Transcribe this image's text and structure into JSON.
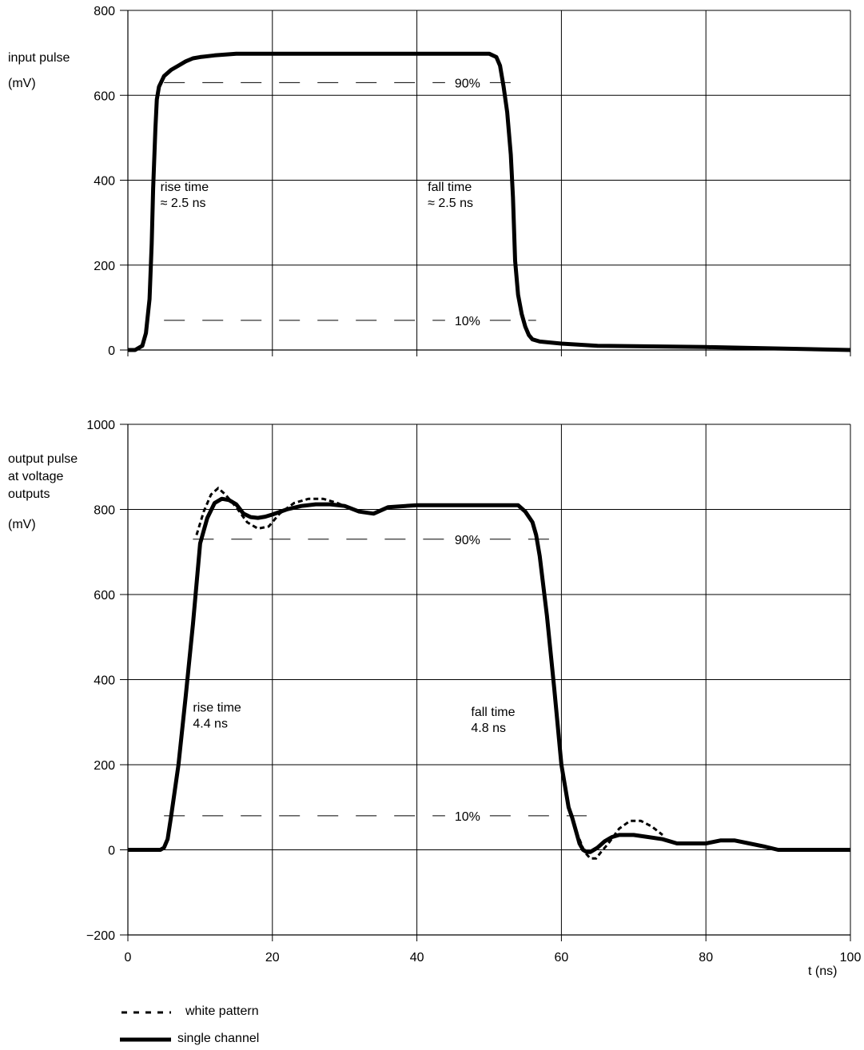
{
  "chart_data": [
    {
      "type": "line",
      "ylabel_lines": [
        "input pulse",
        "(mV)"
      ],
      "xlim": [
        0,
        100
      ],
      "ylim": [
        0,
        800
      ],
      "x_ticks": [
        0,
        20,
        40,
        60,
        80,
        100
      ],
      "y_ticks": [
        0,
        200,
        400,
        600,
        800
      ],
      "y_tick_labels": [
        "0",
        "200",
        "400",
        "600",
        "800"
      ],
      "grid": true,
      "series": [
        {
          "style": "solid",
          "x": [
            0,
            1,
            2,
            2.5,
            3,
            3.3,
            3.5,
            3.8,
            4,
            4.3,
            5,
            6,
            7,
            8,
            9,
            10,
            12,
            15,
            20,
            30,
            40,
            50,
            51,
            51.5,
            52,
            52.5,
            53,
            53.3,
            53.6,
            54,
            54.5,
            55,
            55.5,
            56,
            57,
            60,
            65,
            80,
            100
          ],
          "y": [
            0,
            0,
            10,
            40,
            120,
            250,
            380,
            520,
            590,
            620,
            645,
            660,
            670,
            680,
            687,
            690,
            694,
            698,
            698,
            698,
            698,
            698,
            690,
            670,
            620,
            560,
            460,
            360,
            210,
            130,
            85,
            55,
            35,
            25,
            20,
            15,
            10,
            7,
            0
          ]
        }
      ],
      "reference_lines": [
        {
          "y": 630,
          "x": [
            5,
            53.5
          ],
          "label": "90%"
        },
        {
          "y": 70,
          "x": [
            5,
            56.5
          ],
          "label": "10%"
        }
      ],
      "annotations": [
        {
          "lines": [
            "rise time",
            "≈ 2.5 ns"
          ],
          "x": 4.5,
          "y": 375
        },
        {
          "lines": [
            "fall time",
            "≈ 2.5 ns"
          ],
          "x": 41.5,
          "y": 375
        }
      ]
    },
    {
      "type": "line",
      "ylabel_lines": [
        "output pulse",
        "at voltage",
        "outputs",
        "(mV)"
      ],
      "xlabel": "t (ns)",
      "xlim": [
        0,
        100
      ],
      "ylim": [
        -200,
        1000
      ],
      "x_ticks": [
        0,
        20,
        40,
        60,
        80,
        100
      ],
      "x_tick_labels": [
        "0",
        "20",
        "40",
        "60",
        "80",
        "100"
      ],
      "y_ticks": [
        -200,
        0,
        200,
        400,
        600,
        800,
        1000
      ],
      "y_tick_labels": [
        "−200",
        "0",
        "200",
        "400",
        "600",
        "800",
        "1000"
      ],
      "grid": true,
      "series": [
        {
          "name": "white pattern",
          "style": "dotted",
          "x": [
            9.5,
            10.5,
            11.5,
            12.5,
            13.5,
            15,
            16.5,
            18,
            19.5,
            21,
            23,
            25,
            27,
            29,
            31,
            33
          ],
          "y": [
            740,
            795,
            835,
            850,
            835,
            805,
            770,
            755,
            760,
            790,
            815,
            825,
            825,
            815,
            800,
            790
          ],
          "x2": [
            62.5,
            63.2,
            64,
            64.8,
            65.5,
            66.5,
            68,
            69.5,
            71,
            72.5,
            74
          ],
          "y2": [
            25,
            -5,
            -20,
            -20,
            -5,
            15,
            50,
            68,
            68,
            55,
            35
          ]
        },
        {
          "name": "single channel",
          "style": "solid",
          "x": [
            0,
            4.5,
            5,
            5.5,
            6,
            7,
            8,
            9,
            10,
            11,
            12,
            13,
            14,
            15,
            16,
            17,
            18,
            19,
            20,
            22,
            24,
            26,
            28,
            30,
            32,
            34,
            36,
            40,
            45,
            50,
            54,
            55,
            56,
            56.5,
            57,
            58,
            59,
            60,
            61,
            61.5,
            62,
            62.5,
            63,
            63.5,
            64,
            65,
            66,
            67,
            68,
            70,
            72,
            74,
            76,
            78,
            80,
            82,
            84,
            86,
            88,
            90,
            95,
            100
          ],
          "y": [
            0,
            0,
            5,
            25,
            80,
            200,
            360,
            530,
            720,
            780,
            815,
            825,
            822,
            812,
            790,
            782,
            780,
            783,
            788,
            800,
            808,
            812,
            812,
            808,
            795,
            790,
            805,
            810,
            810,
            810,
            810,
            795,
            770,
            740,
            690,
            550,
            380,
            200,
            100,
            75,
            45,
            15,
            0,
            -5,
            -5,
            5,
            20,
            30,
            35,
            35,
            30,
            25,
            15,
            15,
            15,
            22,
            22,
            15,
            8,
            0,
            0,
            0
          ]
        }
      ],
      "reference_lines": [
        {
          "y": 730,
          "x": [
            9,
            59
          ],
          "label": "90%"
        },
        {
          "y": 80,
          "x": [
            5,
            63.5
          ],
          "label": "10%"
        }
      ],
      "annotations": [
        {
          "lines": [
            "rise time",
            "4.4 ns"
          ],
          "x": 9,
          "y": 325
        },
        {
          "lines": [
            "fall time",
            "4.8 ns"
          ],
          "x": 47.5,
          "y": 315
        }
      ],
      "legend": {
        "placement": "bottom-left",
        "items": [
          {
            "label": "white pattern",
            "style": "dotted"
          },
          {
            "label": "single channel",
            "style": "solid"
          }
        ]
      }
    }
  ]
}
